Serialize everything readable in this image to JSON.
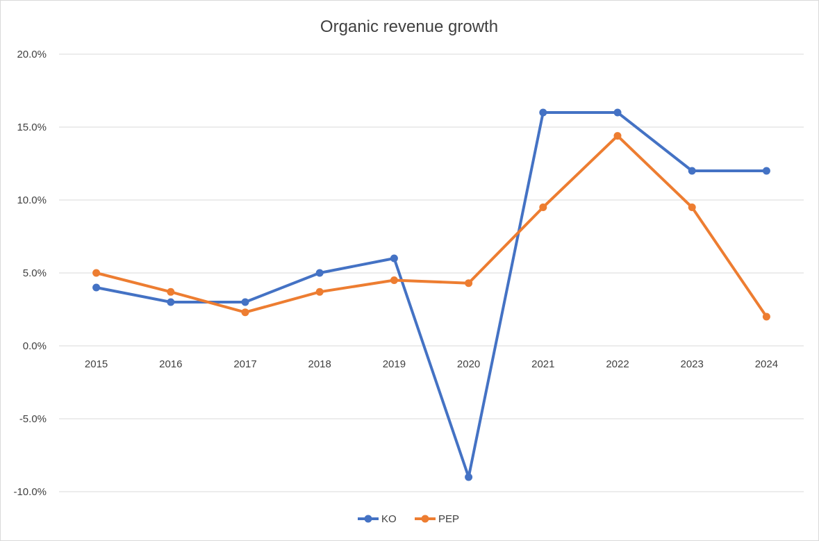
{
  "chart_data": {
    "type": "line",
    "title": "Organic revenue growth",
    "xlabel": "",
    "ylabel": "",
    "categories": [
      "2015",
      "2016",
      "2017",
      "2018",
      "2019",
      "2020",
      "2021",
      "2022",
      "2023",
      "2024"
    ],
    "ylim": [
      -10,
      20
    ],
    "yticks": [
      20,
      15,
      10,
      5,
      0,
      -5,
      -10
    ],
    "ytick_labels": [
      "20.0%",
      "15.0%",
      "10.0%",
      "5.0%",
      "0.0%",
      "-5.0%",
      "-10.0%"
    ],
    "grid": true,
    "legend_position": "bottom",
    "series": [
      {
        "name": "KO",
        "color": "#4472c4",
        "values": [
          4.0,
          3.0,
          3.0,
          5.0,
          6.0,
          -9.0,
          16.0,
          16.0,
          12.0,
          12.0
        ]
      },
      {
        "name": "PEP",
        "color": "#ed7d31",
        "values": [
          5.0,
          3.7,
          2.3,
          3.7,
          4.5,
          4.3,
          9.5,
          14.4,
          9.5,
          2.0
        ]
      }
    ]
  }
}
